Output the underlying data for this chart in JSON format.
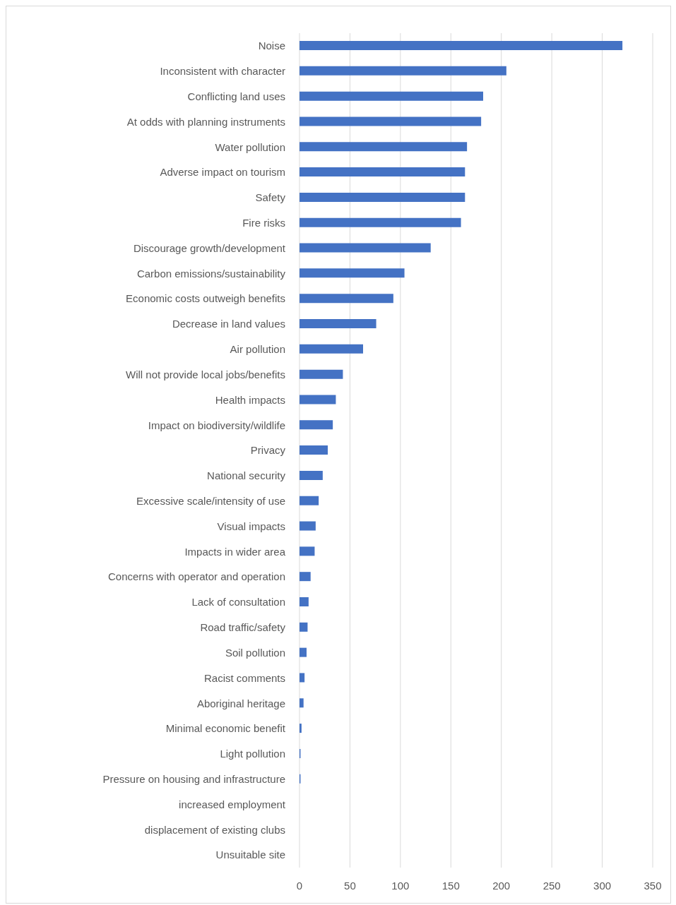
{
  "chart_data": {
    "type": "bar",
    "orientation": "horizontal",
    "categories": [
      "Noise",
      "Inconsistent with character",
      "Conflicting land uses",
      "At odds with planning instruments",
      "Water pollution",
      "Adverse impact on tourism",
      "Safety",
      "Fire risks",
      "Discourage growth/development",
      "Carbon emissions/sustainability",
      "Economic costs outweigh benefits",
      "Decrease in land values",
      "Air pollution",
      "Will not provide local jobs/benefits",
      "Health impacts",
      "Impact on biodiversity/wildlife",
      "Privacy",
      "National security",
      "Excessive scale/intensity of use",
      "Visual impacts",
      "Impacts in wider area",
      "Concerns with operator and operation",
      "Lack of consultation",
      "Road traffic/safety",
      "Soil pollution",
      "Racist comments",
      "Aboriginal heritage",
      "Minimal economic benefit",
      "Light pollution",
      "Pressure on housing and infrastructure",
      "increased employment",
      "displacement of existing clubs",
      "Unsuitable site"
    ],
    "values": [
      320,
      205,
      182,
      180,
      166,
      164,
      164,
      160,
      130,
      104,
      93,
      76,
      63,
      43,
      36,
      33,
      28,
      23,
      19,
      16,
      15,
      11,
      9,
      8,
      7,
      5,
      4,
      2,
      1,
      1,
      0,
      0,
      0
    ],
    "color": "#4472c4",
    "xlim": [
      0,
      350
    ],
    "xticks": [
      0,
      50,
      100,
      150,
      200,
      250,
      300,
      350
    ],
    "grid": "x"
  }
}
